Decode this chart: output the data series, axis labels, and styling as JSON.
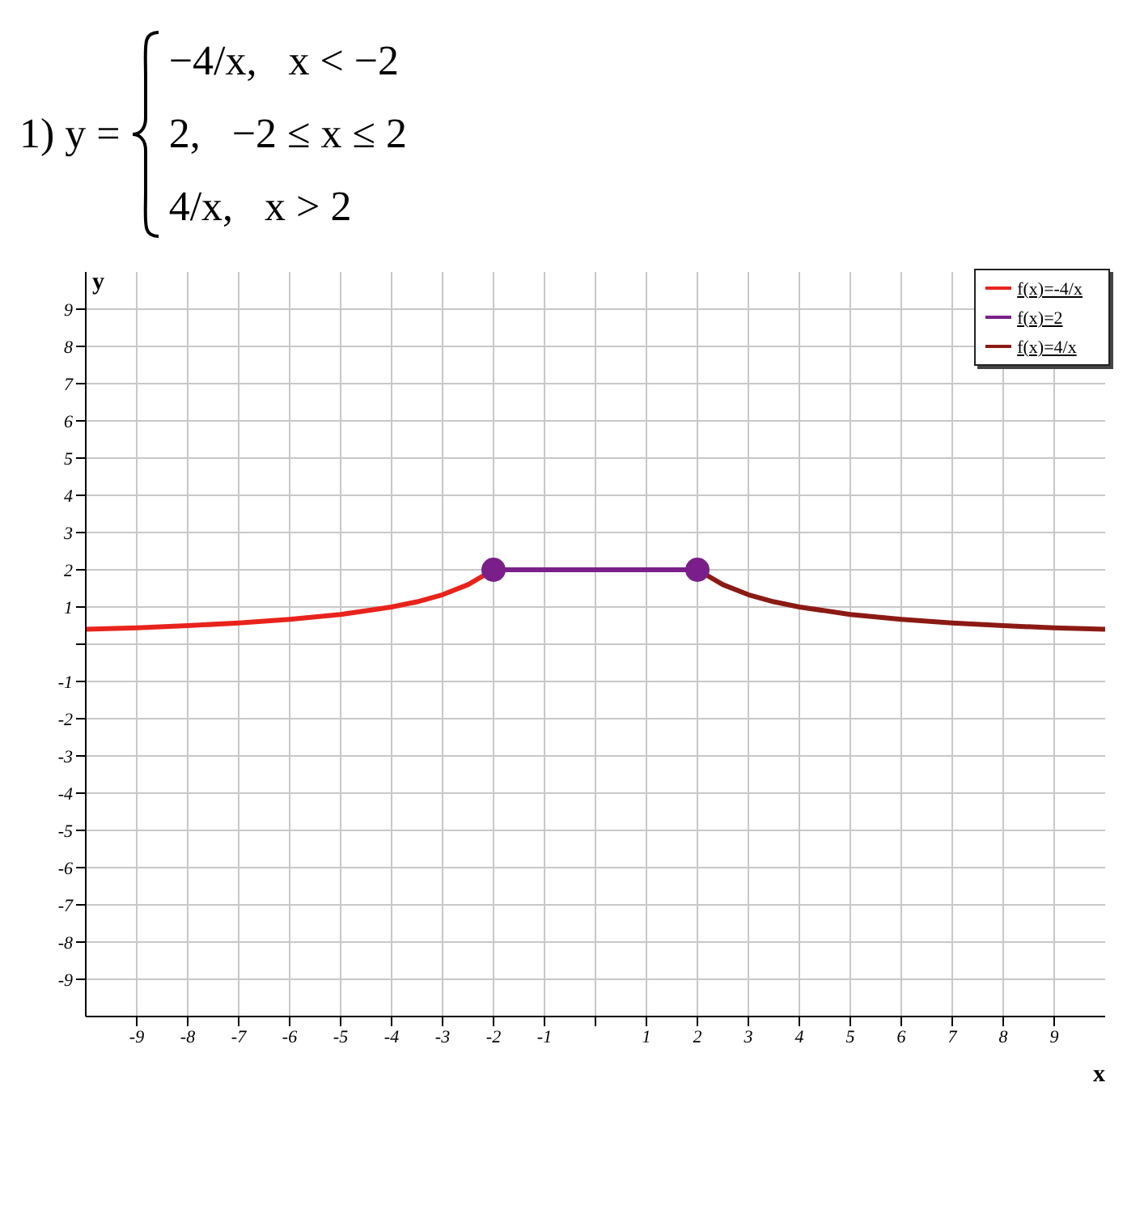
{
  "chart_data": {
    "type": "line",
    "title": "1) y =",
    "annotations": [
      "−4/x,   x < −2",
      "2,   −2 ≤ x ≤ 2",
      "4/x,   x > 2"
    ],
    "xlabel": "x",
    "ylabel": "y",
    "series": [
      {
        "name": "f(x)=-4/x",
        "color": "#e8231c",
        "marker": "none",
        "x": [
          -10,
          -9,
          -8,
          -7,
          -6,
          -5,
          -4,
          -3.5,
          -3,
          -2.5,
          -2
        ],
        "values": [
          0.4,
          0.44,
          0.5,
          0.57,
          0.67,
          0.8,
          1,
          1.14,
          1.33,
          1.6,
          2
        ]
      },
      {
        "name": "f(x)=2",
        "color": "#7a1f8a",
        "marker": "circle",
        "x": [
          -2,
          2
        ],
        "values": [
          2,
          2
        ]
      },
      {
        "name": "f(x)=4/x",
        "color": "#8b1a14",
        "marker": "none",
        "x": [
          2,
          2.5,
          3,
          3.5,
          4,
          5,
          6,
          7,
          8,
          9,
          10
        ],
        "values": [
          2,
          1.6,
          1.33,
          1.14,
          1,
          0.8,
          0.67,
          0.57,
          0.5,
          0.44,
          0.4
        ]
      }
    ],
    "xlim": [
      -10,
      10
    ],
    "ylim": [
      -10,
      10
    ],
    "xticks": [
      -9,
      -8,
      -7,
      -6,
      -5,
      -4,
      -3,
      -2,
      -1,
      {
        "value": 0,
        "label": null
      },
      1,
      2,
      3,
      4,
      5,
      6,
      7,
      8,
      9
    ],
    "yticks": [
      -9,
      -8,
      -7,
      -6,
      -5,
      -4,
      -3,
      -2,
      -1,
      {
        "value": 0,
        "label": null
      },
      1,
      2,
      3,
      4,
      5,
      6,
      7,
      8,
      9
    ],
    "grid": true,
    "legend": "top right",
    "line_style": "solid"
  }
}
